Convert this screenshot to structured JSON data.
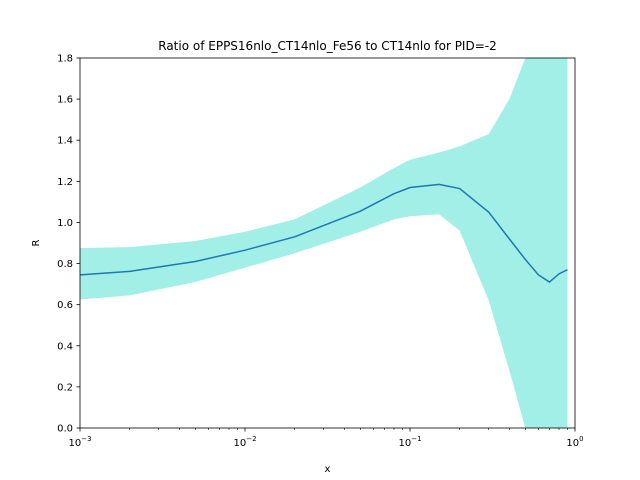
{
  "chart_data": {
    "type": "area",
    "title": "Ratio of EPPS16nlo_CT14nlo_Fe56 to CT14nlo for PID=-2",
    "xlabel": "x",
    "ylabel": "R",
    "xscale": "log",
    "xlim": [
      0.001,
      1.0
    ],
    "ylim": [
      0.0,
      1.8
    ],
    "grid": false,
    "x_ticks": [
      {
        "value": 0.001,
        "base": "10",
        "exp": "−3"
      },
      {
        "value": 0.01,
        "base": "10",
        "exp": "−2"
      },
      {
        "value": 0.1,
        "base": "10",
        "exp": "−1"
      },
      {
        "value": 1.0,
        "base": "10",
        "exp": "0"
      }
    ],
    "y_ticks": [
      {
        "value": 0.0,
        "label": "0.0"
      },
      {
        "value": 0.2,
        "label": "0.2"
      },
      {
        "value": 0.4,
        "label": "0.4"
      },
      {
        "value": 0.6,
        "label": "0.6"
      },
      {
        "value": 0.8,
        "label": "0.8"
      },
      {
        "value": 1.0,
        "label": "1.0"
      },
      {
        "value": 1.2,
        "label": "1.2"
      },
      {
        "value": 1.4,
        "label": "1.4"
      },
      {
        "value": 1.6,
        "label": "1.6"
      },
      {
        "value": 1.8,
        "label": "1.8"
      }
    ],
    "series": [
      {
        "kind": "line",
        "color": "#1f77b4",
        "x": [
          0.001,
          0.002,
          0.005,
          0.01,
          0.02,
          0.05,
          0.08,
          0.1,
          0.15,
          0.2,
          0.3,
          0.4,
          0.5,
          0.6,
          0.7,
          0.8,
          0.9
        ],
        "y": [
          0.745,
          0.762,
          0.81,
          0.865,
          0.93,
          1.055,
          1.14,
          1.17,
          1.185,
          1.165,
          1.05,
          0.92,
          0.82,
          0.745,
          0.71,
          0.75,
          0.77
        ]
      },
      {
        "kind": "band",
        "color": "#a1efe6",
        "x": [
          0.001,
          0.002,
          0.005,
          0.01,
          0.02,
          0.05,
          0.08,
          0.1,
          0.15,
          0.2,
          0.3,
          0.4,
          0.5,
          0.6,
          0.7,
          0.8,
          0.9
        ],
        "upper": [
          0.875,
          0.88,
          0.91,
          0.955,
          1.015,
          1.17,
          1.265,
          1.305,
          1.34,
          1.37,
          1.43,
          1.6,
          1.8,
          1.8,
          1.8,
          1.8,
          1.8
        ],
        "lower": [
          0.625,
          0.645,
          0.71,
          0.78,
          0.85,
          0.955,
          1.015,
          1.03,
          1.04,
          0.96,
          0.62,
          0.28,
          0.0,
          0.0,
          0.0,
          0.0,
          0.0
        ]
      }
    ]
  }
}
